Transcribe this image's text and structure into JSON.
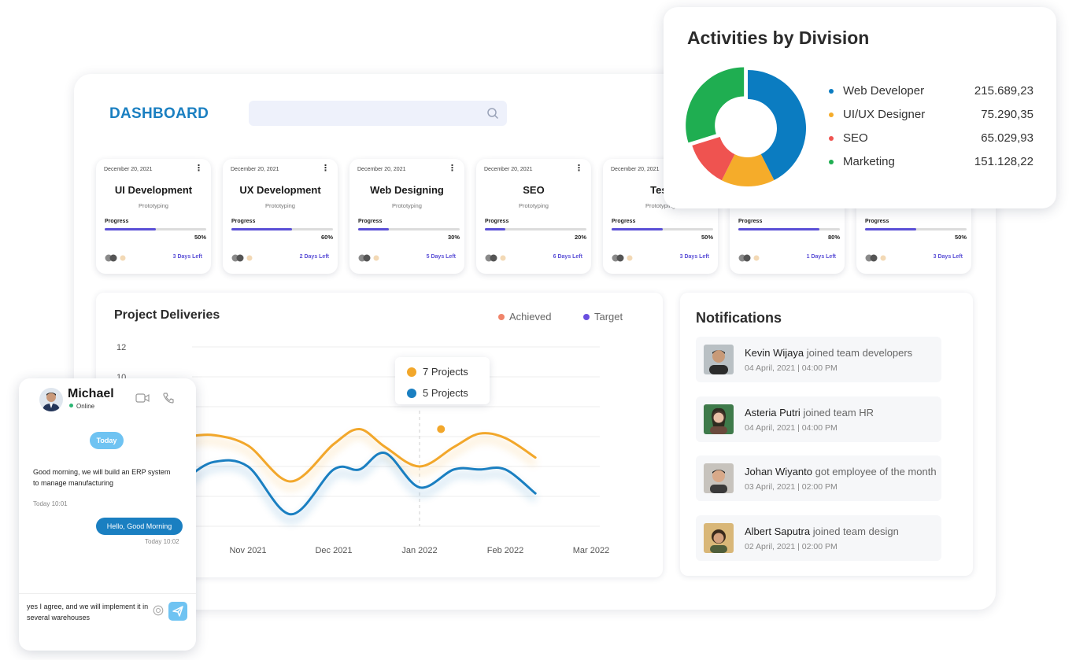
{
  "dashboard": {
    "title": "DASHBOARD",
    "search_placeholder": ""
  },
  "cards": [
    {
      "date": "December 20, 2021",
      "title": "UI Development",
      "subtitle": "Prototyping",
      "progress_label": "Progress",
      "progress": 50,
      "progress_text": "50%",
      "days_left": "3 Days Left"
    },
    {
      "date": "December 20, 2021",
      "title": "UX Development",
      "subtitle": "Prototyping",
      "progress_label": "Progress",
      "progress": 60,
      "progress_text": "60%",
      "days_left": "2 Days Left"
    },
    {
      "date": "December 20, 2021",
      "title": "Web Designing",
      "subtitle": "Prototyping",
      "progress_label": "Progress",
      "progress": 30,
      "progress_text": "30%",
      "days_left": "5 Days Left"
    },
    {
      "date": "December 20, 2021",
      "title": "SEO",
      "subtitle": "Prototyping",
      "progress_label": "Progress",
      "progress": 20,
      "progress_text": "20%",
      "days_left": "6 Days Left"
    },
    {
      "date": "December 20, 2021",
      "title": "Test",
      "subtitle": "Prototyping",
      "progress_label": "Progress",
      "progress": 50,
      "progress_text": "50%",
      "days_left": "3 Days Left"
    },
    {
      "date": "",
      "title": "",
      "subtitle": "",
      "progress_label": "Progress",
      "progress": 80,
      "progress_text": "80%",
      "days_left": "1 Days Left"
    },
    {
      "date": "",
      "title": "",
      "subtitle": "",
      "progress_label": "Progress",
      "progress": 50,
      "progress_text": "50%",
      "days_left": "3 Days Left"
    }
  ],
  "deliveries": {
    "title": "Project Deliveries",
    "legend_achieved": "Achieved",
    "legend_target": "Target",
    "tooltip_line1": "7 Projects",
    "tooltip_line2": "5 Projects",
    "colors": {
      "achieved": "#f2a72b",
      "target": "#1a7fc1",
      "achieved_dot": "#f0846a",
      "target_dot": "#6a4fe0"
    }
  },
  "chart_data": {
    "type": "line",
    "title": "Project Deliveries",
    "x_tick_labels": [
      "Nov 2021",
      "Dec 2021",
      "Jan 2022",
      "Feb 2022",
      "Mar 2022"
    ],
    "y_tick_labels": [
      "12",
      "10"
    ],
    "ylim": [
      0,
      12
    ],
    "x": [
      0.3,
      0.6,
      1.0,
      1.5,
      2.0,
      2.3,
      2.6,
      3.0,
      3.4,
      3.7,
      4.0,
      4.35
    ],
    "series": [
      {
        "name": "Achieved",
        "values": [
          6.0,
          6.1,
          5.4,
          3.0,
          5.5,
          6.5,
          5.3,
          4.0,
          5.3,
          6.2,
          5.9,
          4.6
        ]
      },
      {
        "name": "Target",
        "values": [
          3.3,
          4.3,
          4.0,
          0.8,
          3.8,
          3.8,
          4.9,
          2.6,
          3.8,
          3.8,
          3.8,
          2.2
        ]
      }
    ]
  },
  "notifications": {
    "title": "Notifications",
    "items": [
      {
        "name": "Kevin Wijaya",
        "action": "joined team developers",
        "time": "04 April, 2021 | 04:00 PM"
      },
      {
        "name": "Asteria Putri",
        "action": "joined team HR",
        "time": "04 April, 2021 | 04:00 PM"
      },
      {
        "name": "Johan Wiyanto",
        "action": "got employee of the month",
        "time": "03 April, 2021 | 02:00 PM"
      },
      {
        "name": "Albert  Saputra",
        "action": "joined team design",
        "time": "02 April, 2021 | 02:00 PM"
      }
    ]
  },
  "activities": {
    "title": "Activities by Division",
    "rows": [
      {
        "label": "Web Developer",
        "value": "215.689,23",
        "amount": 215689.23,
        "color": "#0b7cc1"
      },
      {
        "label": "UI/UX Designer",
        "value": "75.290,35",
        "amount": 75290.35,
        "color": "#f5ac2a"
      },
      {
        "label": "SEO",
        "value": "65.029,93",
        "amount": 65029.93,
        "color": "#ef5350"
      },
      {
        "label": "Marketing",
        "value": "151.128,22",
        "amount": 151128.22,
        "color": "#1fae51"
      }
    ]
  },
  "chat": {
    "name": "Michael",
    "status": "Online",
    "today": "Today",
    "msg1": "Good morning, we will build an ERP system to manage manufacturing",
    "msg1_time": "Today 10:01",
    "msg2": "Hello, Good Morning",
    "msg2_time": "Today 10:02",
    "input_value": "yes I agree, and we will implement it in  several warehouses"
  }
}
